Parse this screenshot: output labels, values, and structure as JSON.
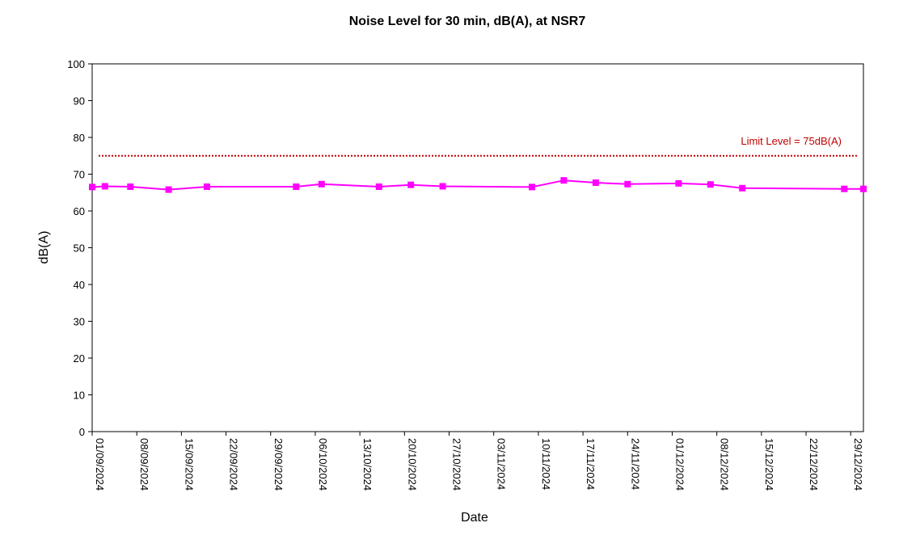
{
  "chart_data": {
    "type": "line",
    "title": "Noise Level for 30 min, dB(A), at NSR7",
    "xlabel": "Date",
    "ylabel": "dB(A)",
    "ylim": [
      0,
      100
    ],
    "yticks": [
      0,
      10,
      20,
      30,
      40,
      50,
      60,
      70,
      80,
      90,
      100
    ],
    "xlim": [
      "2024-09-01",
      "2024-12-31"
    ],
    "xticks": [
      "01/09/2024",
      "08/09/2024",
      "15/09/2024",
      "22/09/2024",
      "29/09/2024",
      "06/10/2024",
      "13/10/2024",
      "20/10/2024",
      "27/10/2024",
      "03/11/2024",
      "10/11/2024",
      "17/11/2024",
      "24/11/2024",
      "01/12/2024",
      "08/12/2024",
      "15/12/2024",
      "22/12/2024",
      "29/12/2024"
    ],
    "grid": false,
    "legend": "none",
    "limit_line": {
      "label": "Limit Level  = 75dB(A)",
      "value": 75,
      "color": "#c00000"
    },
    "series": [
      {
        "color": "#ff00ff",
        "marker": "square",
        "points": [
          {
            "x": "2024-09-01",
            "y": 66.5
          },
          {
            "x": "2024-09-03",
            "y": 66.7
          },
          {
            "x": "2024-09-07",
            "y": 66.6
          },
          {
            "x": "2024-09-13",
            "y": 65.8
          },
          {
            "x": "2024-09-19",
            "y": 66.6
          },
          {
            "x": "2024-10-03",
            "y": 66.6
          },
          {
            "x": "2024-10-07",
            "y": 67.3
          },
          {
            "x": "2024-10-16",
            "y": 66.6
          },
          {
            "x": "2024-10-21",
            "y": 67.1
          },
          {
            "x": "2024-10-26",
            "y": 66.7
          },
          {
            "x": "2024-11-09",
            "y": 66.5
          },
          {
            "x": "2024-11-14",
            "y": 68.3
          },
          {
            "x": "2024-11-19",
            "y": 67.7
          },
          {
            "x": "2024-11-24",
            "y": 67.3
          },
          {
            "x": "2024-12-02",
            "y": 67.5
          },
          {
            "x": "2024-12-07",
            "y": 67.2
          },
          {
            "x": "2024-12-12",
            "y": 66.2
          },
          {
            "x": "2024-12-28",
            "y": 66.0
          },
          {
            "x": "2024-12-31",
            "y": 66.0
          }
        ]
      }
    ]
  }
}
